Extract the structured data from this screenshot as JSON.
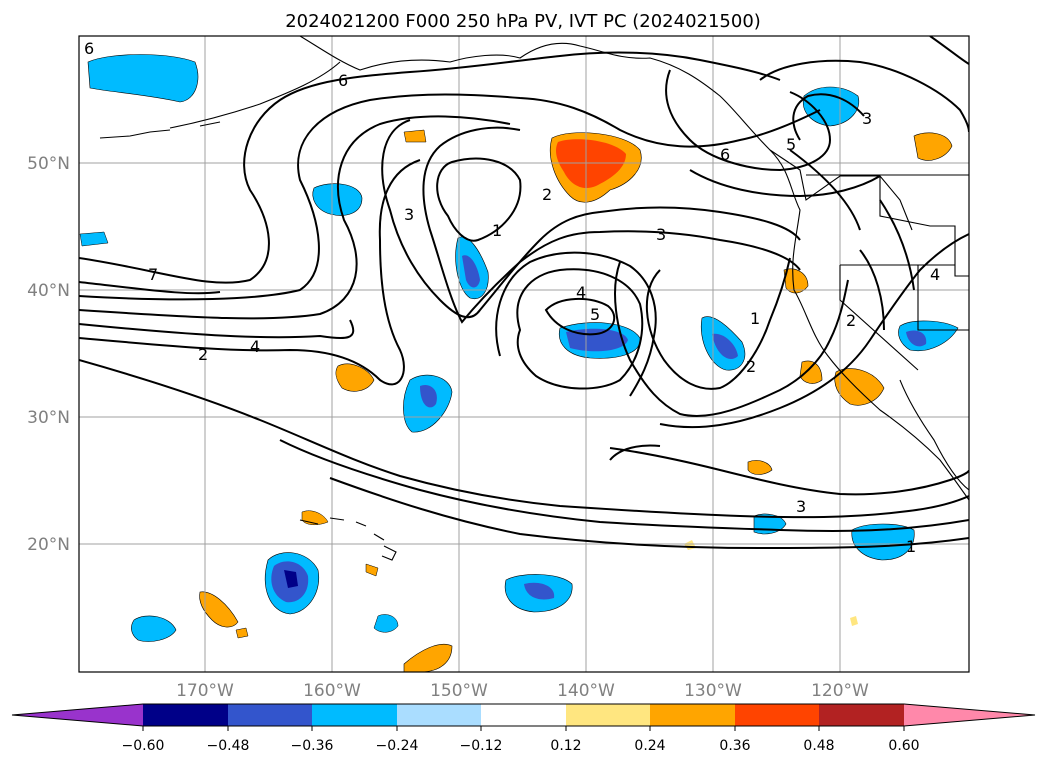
{
  "title": "2024021200 F000 250 hPa PV, IVT PC (2024021500)",
  "map": {
    "lat_labels": [
      "50°N",
      "40°N",
      "30°N",
      "20°N"
    ],
    "lon_labels": [
      "170°W",
      "160°W",
      "150°W",
      "140°W",
      "130°W",
      "120°W"
    ],
    "contour_labels": [
      "6",
      "6",
      "6",
      "5",
      "3",
      "3",
      "2",
      "1",
      "4",
      "5",
      "3",
      "1",
      "2",
      "2",
      "4",
      "7",
      "2",
      "4",
      "3",
      "1"
    ]
  },
  "colorbar": {
    "tick_labels": [
      "−0.60",
      "−0.48",
      "−0.36",
      "−0.24",
      "−0.12",
      "0.12",
      "0.24",
      "0.36",
      "0.48",
      "0.60"
    ],
    "colors": [
      "#9933cc",
      "#000088",
      "#3355cc",
      "#00bbff",
      "#aaddff",
      "#ffffff",
      "#ffe680",
      "#ffa500",
      "#ff4400",
      "#b22222",
      "#ff88aa"
    ]
  }
}
